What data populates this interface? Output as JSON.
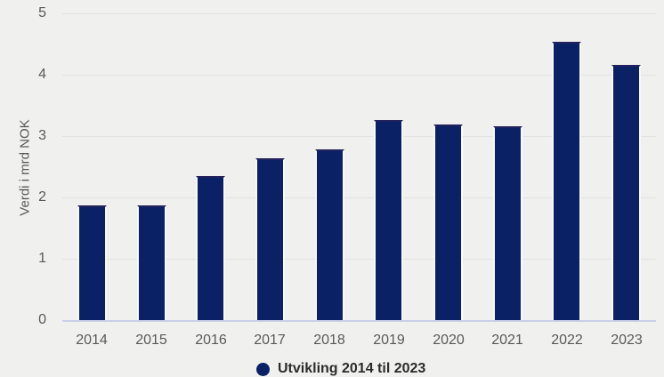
{
  "chart_data": {
    "type": "bar",
    "categories": [
      "2014",
      "2015",
      "2016",
      "2017",
      "2018",
      "2019",
      "2020",
      "2021",
      "2022",
      "2023"
    ],
    "values": [
      1.87,
      1.87,
      2.35,
      2.63,
      2.78,
      3.25,
      3.18,
      3.15,
      4.53,
      4.15
    ],
    "title": "",
    "xlabel": "",
    "ylabel": "Verdi i mrd NOK",
    "ylim": [
      0,
      5
    ],
    "yticks": [
      "0",
      "1",
      "2",
      "3",
      "4",
      "5"
    ],
    "grid": "horizontal",
    "legend": {
      "label": "Utvikling 2014 til 2023",
      "position": "bottom-center",
      "marker": "circle"
    },
    "colors": {
      "bar": "#0a2166",
      "background": "#f0f1ef",
      "gridline": "#e2e3e1",
      "baseline": "#c9cfe9",
      "tick_text": "#595959",
      "axis_title_text": "#5a5a5a",
      "legend_text": "#2b2b2b"
    }
  }
}
